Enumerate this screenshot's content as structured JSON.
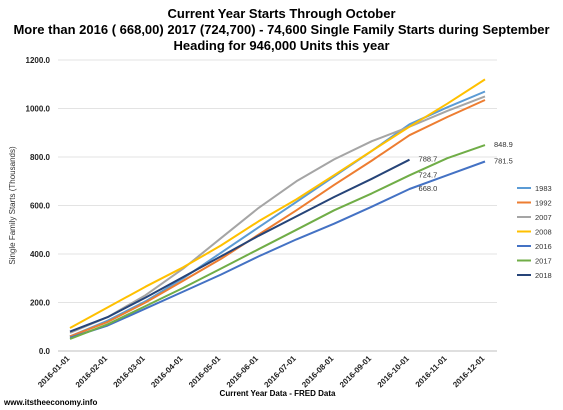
{
  "title_lines": [
    "Current Year Starts Through October",
    "More than 2016 ( 668,00)  2017 (724,700) - 74,600 Single Family  Starts during September",
    "Heading for 946,000 Units this year"
  ],
  "source": "www.itstheeconomy.info",
  "chart_data": {
    "type": "line",
    "xlabel": "Current Year Data - FRED Data",
    "ylabel": "Single Family Starts (Thousands)",
    "ylim": [
      0,
      1200
    ],
    "yticks": [
      "0.0",
      "200.0",
      "400.0",
      "600.0",
      "800.0",
      "1000.0",
      "1200.0"
    ],
    "x": [
      "2016-01-01",
      "2016-02-01",
      "2016-03-01",
      "2016-04-01",
      "2016-05-01",
      "2016-06-01",
      "2016-07-01",
      "2016-08-01",
      "2016-09-01",
      "2016-10-01",
      "2016-11-01",
      "2016-12-01"
    ],
    "grid": "horizontal",
    "legend": "right",
    "series": [
      {
        "name": "1983",
        "color": "#5b9bd5",
        "values": [
          60,
          125,
          205,
          300,
          405,
          510,
          615,
          720,
          825,
          935,
          1005,
          1070
        ]
      },
      {
        "name": "1992",
        "color": "#ed7d31",
        "values": [
          60,
          120,
          200,
          290,
          380,
          480,
          580,
          685,
          785,
          890,
          965,
          1035
        ]
      },
      {
        "name": "2007",
        "color": "#a5a5a5",
        "values": [
          75,
          140,
          230,
          340,
          465,
          590,
          700,
          790,
          865,
          925,
          990,
          1050
        ]
      },
      {
        "name": "2008",
        "color": "#ffc000",
        "values": [
          95,
          180,
          265,
          345,
          435,
          535,
          625,
          725,
          825,
          925,
          1020,
          1120
        ]
      },
      {
        "name": "2016",
        "color": "#4472c4",
        "values": [
          55,
          105,
          175,
          245,
          315,
          390,
          460,
          525,
          595,
          668.0,
          725,
          781.5
        ]
      },
      {
        "name": "2017",
        "color": "#70ad47",
        "values": [
          50,
          110,
          185,
          260,
          340,
          420,
          500,
          580,
          650,
          724.7,
          795,
          848.9
        ]
      },
      {
        "name": "2018",
        "color": "#264478",
        "values": [
          80,
          140,
          220,
          305,
          390,
          475,
          555,
          635,
          710,
          788.7,
          null,
          null
        ]
      }
    ],
    "data_labels": [
      {
        "series": "2018",
        "index": 9,
        "text": "788.7"
      },
      {
        "series": "2017",
        "index": 9,
        "text": "724.7"
      },
      {
        "series": "2016",
        "index": 9,
        "text": "668.0"
      },
      {
        "series": "2017",
        "index": 11,
        "text": "848.9"
      },
      {
        "series": "2016",
        "index": 11,
        "text": "781.5"
      }
    ]
  }
}
